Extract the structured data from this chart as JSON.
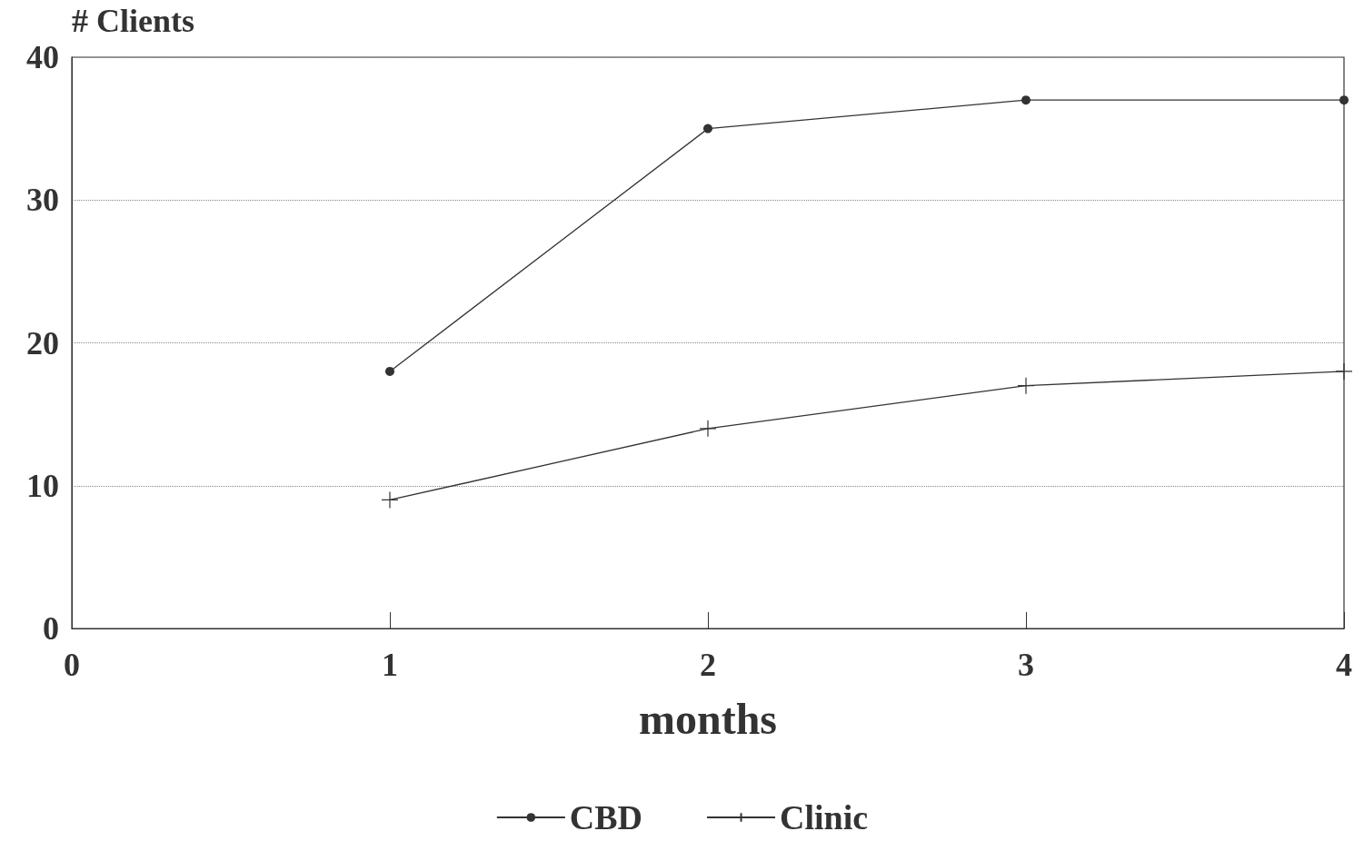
{
  "chart_data": {
    "type": "line",
    "xlabel": "months",
    "ylabel": "# Clients",
    "xlim": [
      0,
      4
    ],
    "xticks": [
      0,
      1,
      2,
      3,
      4
    ],
    "ylim": [
      0,
      40
    ],
    "yticks": [
      0,
      10,
      20,
      30,
      40
    ],
    "grid": "y",
    "legend": "bottom",
    "series": [
      {
        "name": "CBD",
        "color": "#333333",
        "marker": "circle",
        "x": [
          1,
          2,
          3,
          4
        ],
        "values": [
          18,
          35,
          37,
          37
        ]
      },
      {
        "name": "Clinic",
        "color": "#333333",
        "marker": "cross",
        "x": [
          1,
          2,
          3,
          4
        ],
        "values": [
          9,
          14,
          17,
          18
        ]
      }
    ]
  }
}
